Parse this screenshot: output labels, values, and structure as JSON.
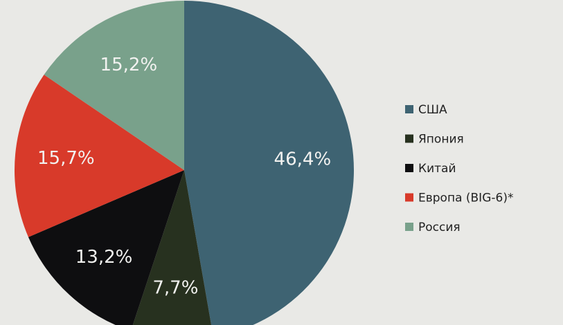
{
  "chart_data": {
    "type": "pie",
    "categories": [
      "США",
      "Япония",
      "Китай",
      "Европа (BIG-6)*",
      "Россия"
    ],
    "values": [
      46.4,
      7.7,
      13.2,
      15.7,
      15.2
    ],
    "value_labels": [
      "46,4%",
      "7,7%",
      "13,2%",
      "15,7%",
      "15,2%"
    ],
    "colors": [
      "#3e6372",
      "#27311f",
      "#0e0e10",
      "#d83a2a",
      "#79a18b"
    ],
    "legend": "right"
  }
}
